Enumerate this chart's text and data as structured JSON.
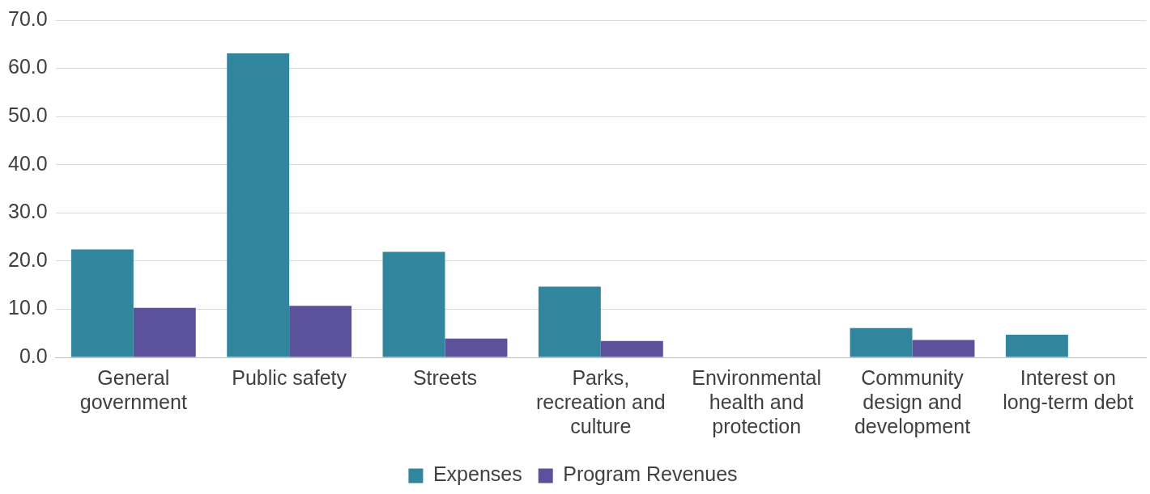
{
  "chart_data": {
    "type": "bar",
    "categories": [
      "General government",
      "Public safety",
      "Streets",
      "Parks, recreation and culture",
      "Environmental health and protection",
      "Community design and development",
      "Interest on long-term debt"
    ],
    "series": [
      {
        "name": "Expenses",
        "color": "#31859c",
        "values": [
          22.4,
          63.1,
          21.9,
          14.7,
          0,
          6.1,
          4.7
        ]
      },
      {
        "name": "Program Revenues",
        "color": "#5c519b",
        "values": [
          10.3,
          10.7,
          3.9,
          3.4,
          0,
          3.6,
          0
        ]
      }
    ],
    "ylim": [
      0,
      70
    ],
    "yticks": [
      {
        "value": 0,
        "label": "0.0"
      },
      {
        "value": 10,
        "label": "10.0"
      },
      {
        "value": 20,
        "label": "20.0"
      },
      {
        "value": 30,
        "label": "30.0"
      },
      {
        "value": 40,
        "label": "40.0"
      },
      {
        "value": 50,
        "label": "50.0"
      },
      {
        "value": 60,
        "label": "60.0"
      },
      {
        "value": 70,
        "label": "70.0"
      }
    ],
    "grid": "y",
    "legend": "bottom"
  }
}
